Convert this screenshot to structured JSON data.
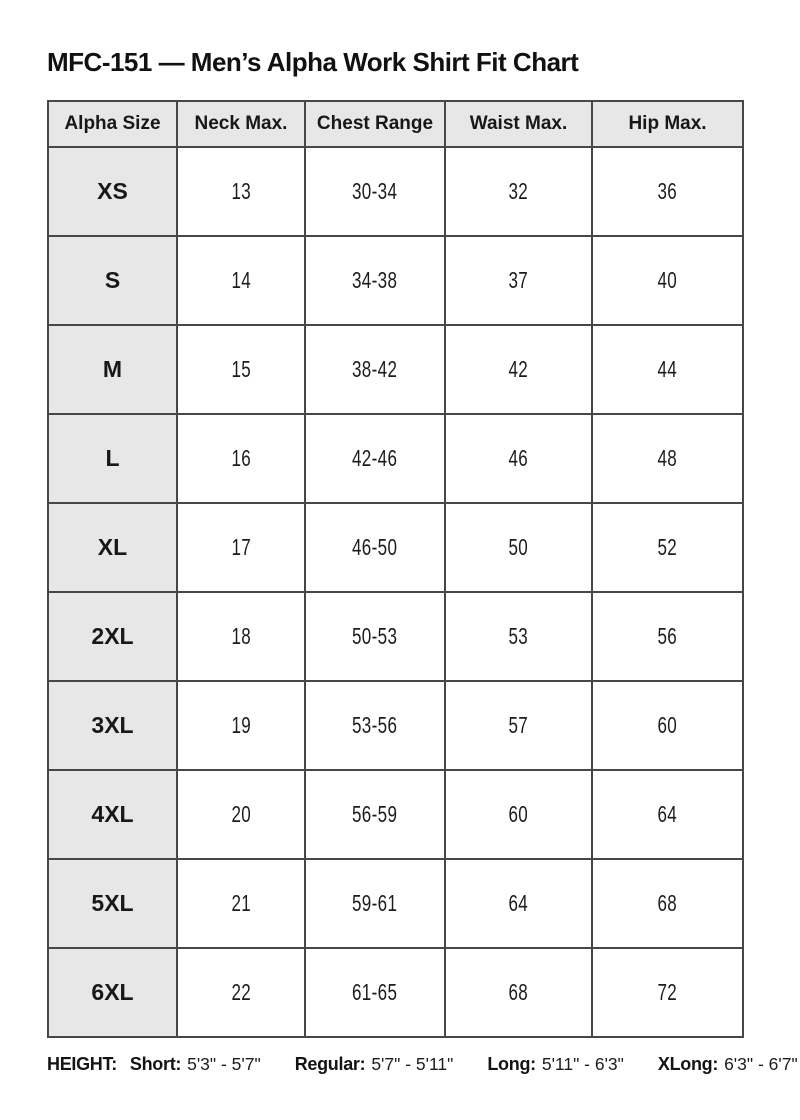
{
  "title": "MFC-151 — Men’s Alpha Work Shirt Fit Chart",
  "table": {
    "headers": [
      "Alpha Size",
      "Neck Max.",
      "Chest Range",
      "Waist Max.",
      "Hip Max."
    ],
    "rows": [
      [
        "XS",
        "13",
        "30-34",
        "32",
        "36"
      ],
      [
        "S",
        "14",
        "34-38",
        "37",
        "40"
      ],
      [
        "M",
        "15",
        "38-42",
        "42",
        "44"
      ],
      [
        "L",
        "16",
        "42-46",
        "46",
        "48"
      ],
      [
        "XL",
        "17",
        "46-50",
        "50",
        "52"
      ],
      [
        "2XL",
        "18",
        "50-53",
        "53",
        "56"
      ],
      [
        "3XL",
        "19",
        "53-56",
        "57",
        "60"
      ],
      [
        "4XL",
        "20",
        "56-59",
        "60",
        "64"
      ],
      [
        "5XL",
        "21",
        "59-61",
        "64",
        "68"
      ],
      [
        "6XL",
        "22",
        "61-65",
        "68",
        "72"
      ]
    ]
  },
  "footer": {
    "label": "HEIGHT:",
    "entries": [
      {
        "label": "Short:",
        "value": "5'3\" - 5'7\""
      },
      {
        "label": "Regular:",
        "value": "5'7\" - 5'11\""
      },
      {
        "label": "Long:",
        "value": "5'11\" - 6'3\""
      },
      {
        "label": "XLong:",
        "value": "6'3\" - 6'7\""
      }
    ]
  },
  "colors": {
    "header_bg": "#e7e7e7",
    "border": "#474747",
    "text": "#141414"
  }
}
